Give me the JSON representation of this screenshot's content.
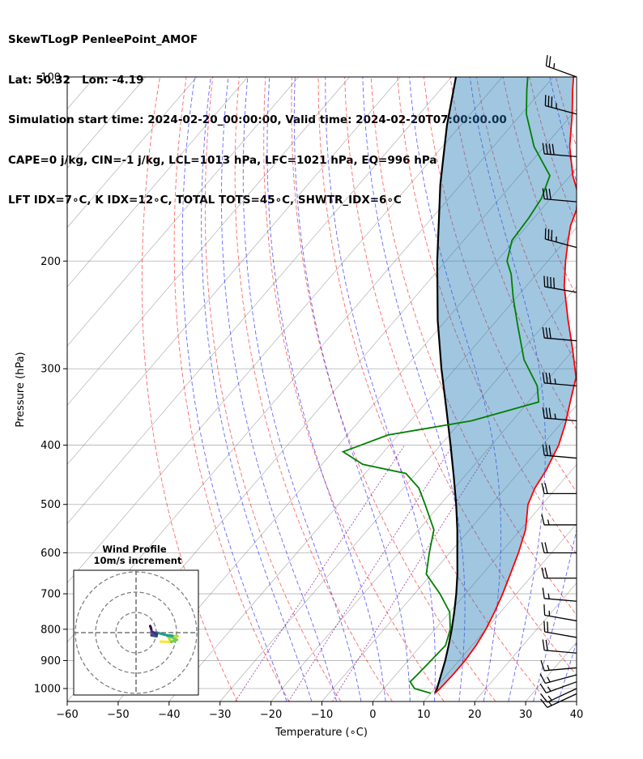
{
  "header": {
    "line1": "SkewTLogP PenleePoint_AMOF",
    "line2": "Lat: 50.32   Lon: -4.19",
    "line3": "Simulation start time: 2024-02-20_00:00:00, Valid time: 2024-02-20T07:00:00.00",
    "line4": "CAPE=0 j/kg, CIN=-1 j/kg, LCL=1013 hPa, LFC=1021 hPa, EQ=996 hPa",
    "line5": "LFT IDX=7∘C, K IDX=12∘C, TOTAL TOTS=45∘C, SHWTR_IDX=6∘C"
  },
  "chart_data": {
    "type": "line",
    "subtype": "skew-T log-P",
    "xlabel": "Temperature (∘C)",
    "ylabel": "Pressure (hPa)",
    "xlim": [
      -60,
      40
    ],
    "ylim": [
      1050,
      100
    ],
    "yscale": "log",
    "grid": true,
    "x_ticks": [
      "−60",
      "−50",
      "−40",
      "−30",
      "−20",
      "−10",
      "0",
      "10",
      "20",
      "30",
      "40"
    ],
    "x_tick_values": [
      -60,
      -50,
      -40,
      -30,
      -20,
      -10,
      0,
      10,
      20,
      30,
      40
    ],
    "y_ticks": [
      "1000",
      "900",
      "800",
      "700",
      "600",
      "500",
      "400",
      "300",
      "200",
      "100"
    ],
    "y_tick_values": [
      1000,
      900,
      800,
      700,
      600,
      500,
      400,
      300,
      200,
      100
    ],
    "colors": {
      "temperature": "#ff0000",
      "dewpoint": "#008000",
      "parcel": "#000000",
      "cape_fill": "#1f77b4",
      "dry_adiabat": "#ff0000",
      "moist_adiabat": "#0000ff",
      "mixing_ratio": "#800080",
      "isotherm": "#808080"
    },
    "series": [
      {
        "key": "temperature",
        "points": [
          [
            1018,
            10.8
          ],
          [
            1000,
            11.0
          ],
          [
            950,
            11.2
          ],
          [
            900,
            11.2
          ],
          [
            850,
            10.8
          ],
          [
            800,
            10.0
          ],
          [
            750,
            8.8
          ],
          [
            700,
            7.3
          ],
          [
            650,
            5.5
          ],
          [
            600,
            3.5
          ],
          [
            550,
            1.0
          ],
          [
            500,
            -2.8
          ],
          [
            470,
            -4.2
          ],
          [
            440,
            -5.0
          ],
          [
            400,
            -6.8
          ],
          [
            370,
            -9.0
          ],
          [
            340,
            -11.8
          ],
          [
            310,
            -14.8
          ],
          [
            280,
            -20.0
          ],
          [
            250,
            -26.0
          ],
          [
            220,
            -32.5
          ],
          [
            200,
            -36.5
          ],
          [
            185,
            -39.5
          ],
          [
            175,
            -41.5
          ],
          [
            165,
            -43.0
          ],
          [
            155,
            -45.5
          ],
          [
            145,
            -49.5
          ],
          [
            130,
            -55.0
          ],
          [
            115,
            -60.0
          ],
          [
            105,
            -64.0
          ],
          [
            100,
            -66.0
          ]
        ]
      },
      {
        "key": "dewpoint",
        "points": [
          [
            1018,
            10.0
          ],
          [
            1000,
            6.0
          ],
          [
            975,
            4.0
          ],
          [
            950,
            4.2
          ],
          [
            900,
            4.5
          ],
          [
            850,
            4.8
          ],
          [
            800,
            3.0
          ],
          [
            750,
            0.0
          ],
          [
            700,
            -5.0
          ],
          [
            650,
            -11.0
          ],
          [
            600,
            -14.0
          ],
          [
            550,
            -17.0
          ],
          [
            500,
            -23.0
          ],
          [
            470,
            -27.0
          ],
          [
            445,
            -32.0
          ],
          [
            430,
            -42.0
          ],
          [
            410,
            -48.0
          ],
          [
            385,
            -42.0
          ],
          [
            365,
            -28.0
          ],
          [
            340,
            -18.0
          ],
          [
            320,
            -21.0
          ],
          [
            290,
            -28.0
          ],
          [
            255,
            -35.0
          ],
          [
            230,
            -40.5
          ],
          [
            210,
            -45.0
          ],
          [
            200,
            -48.0
          ],
          [
            185,
            -50.5
          ],
          [
            170,
            -51.0
          ],
          [
            158,
            -51.8
          ],
          [
            145,
            -54.0
          ],
          [
            130,
            -62.0
          ],
          [
            115,
            -69.0
          ],
          [
            105,
            -73.0
          ],
          [
            100,
            -75.0
          ]
        ]
      },
      {
        "key": "parcel",
        "points": [
          [
            1018,
            10.8
          ],
          [
            1000,
            10.4
          ],
          [
            950,
            8.9
          ],
          [
            900,
            7.3
          ],
          [
            850,
            5.4
          ],
          [
            800,
            3.3
          ],
          [
            750,
            0.9
          ],
          [
            700,
            -1.8
          ],
          [
            650,
            -4.9
          ],
          [
            600,
            -8.5
          ],
          [
            550,
            -12.4
          ],
          [
            500,
            -16.9
          ],
          [
            450,
            -22.1
          ],
          [
            400,
            -28.0
          ],
          [
            350,
            -34.8
          ],
          [
            300,
            -42.7
          ],
          [
            250,
            -51.6
          ],
          [
            200,
            -61.7
          ],
          [
            150,
            -74.0
          ],
          [
            120,
            -82.7
          ],
          [
            100,
            -89.1
          ]
        ]
      }
    ],
    "wind_barbs": [
      {
        "p": 1020,
        "speed": 15,
        "dir": 245
      },
      {
        "p": 1000,
        "speed": 15,
        "dir": 245
      },
      {
        "p": 975,
        "speed": 15,
        "dir": 250
      },
      {
        "p": 950,
        "speed": 15,
        "dir": 255
      },
      {
        "p": 925,
        "speed": 15,
        "dir": 265
      },
      {
        "p": 875,
        "speed": 20,
        "dir": 275
      },
      {
        "p": 825,
        "speed": 20,
        "dir": 280
      },
      {
        "p": 775,
        "speed": 15,
        "dir": 280
      },
      {
        "p": 720,
        "speed": 15,
        "dir": 275
      },
      {
        "p": 660,
        "speed": 20,
        "dir": 270
      },
      {
        "p": 600,
        "speed": 20,
        "dir": 270
      },
      {
        "p": 540,
        "speed": 15,
        "dir": 270
      },
      {
        "p": 480,
        "speed": 20,
        "dir": 270
      },
      {
        "p": 420,
        "speed": 30,
        "dir": 275
      },
      {
        "p": 365,
        "speed": 35,
        "dir": 275
      },
      {
        "p": 320,
        "speed": 35,
        "dir": 275
      },
      {
        "p": 270,
        "speed": 30,
        "dir": 275
      },
      {
        "p": 225,
        "speed": 40,
        "dir": 280
      },
      {
        "p": 190,
        "speed": 35,
        "dir": 285
      },
      {
        "p": 160,
        "speed": 30,
        "dir": 275
      },
      {
        "p": 135,
        "speed": 40,
        "dir": 275
      },
      {
        "p": 115,
        "speed": 35,
        "dir": 285
      },
      {
        "p": 100,
        "speed": 25,
        "dir": 290
      }
    ]
  },
  "inset": {
    "title": "Wind Profile",
    "subtitle": "10m/s increment"
  }
}
